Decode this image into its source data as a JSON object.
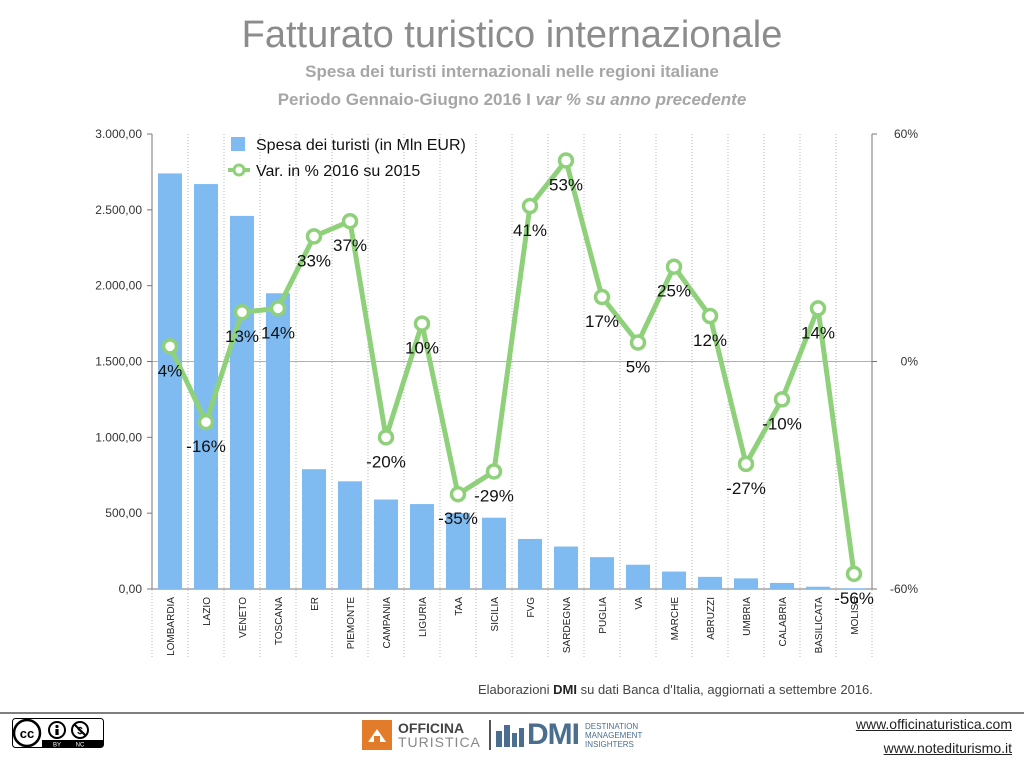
{
  "header": {
    "title": "Fatturato turistico internazionale",
    "subtitle": "Spesa dei turisti internazionali nelle regioni italiane",
    "period_main": "Periodo Gennaio-Giugno 2016 I ",
    "period_italic": "var % su anno precedente"
  },
  "chart_data": {
    "type": "bar",
    "categories": [
      "LOMBARDIA",
      "LAZIO",
      "VENETO",
      "TOSCANA",
      "ER",
      "PIEMONTE",
      "CAMPANIA",
      "LIGURIA",
      "TAA",
      "SICILIA",
      "FVG",
      "SARDEGNA",
      "PUGLIA",
      "VA",
      "MARCHE",
      "ABRUZZI",
      "UMBRIA",
      "CALABRIA",
      "BASILICATA",
      "MOLISE"
    ],
    "series": [
      {
        "name": "Spesa dei turisti (in Mln EUR)",
        "type": "bar",
        "axis": "left",
        "color": "#7fbbf0",
        "values": [
          2740,
          2670,
          2460,
          1950,
          790,
          710,
          590,
          560,
          500,
          470,
          330,
          280,
          210,
          160,
          115,
          80,
          70,
          40,
          15,
          5
        ]
      },
      {
        "name": "Var. in %   2016 su 2015",
        "type": "line",
        "axis": "right",
        "color": "#8fd17a",
        "values": [
          4,
          -16,
          13,
          14,
          33,
          37,
          -20,
          10,
          -35,
          -29,
          41,
          53,
          17,
          5,
          25,
          12,
          -27,
          -10,
          14,
          -56
        ],
        "labels": [
          "4%",
          "-16%",
          "13%",
          "14%",
          "33%",
          "37%",
          "-20%",
          "10%",
          "-35%",
          "-29%",
          "41%",
          "53%",
          "17%",
          "5%",
          "25%",
          "12%",
          "-27%",
          "-10%",
          "14%",
          "-56%"
        ]
      }
    ],
    "y_left": {
      "min": 0,
      "max": 3000,
      "ticks": [
        "0,00",
        "500,00",
        "1.000,00",
        "1.500,00",
        "2.000,00",
        "2.500,00",
        "3.000,00"
      ]
    },
    "y_right": {
      "min": -60,
      "max": 60,
      "ticks": [
        "-60%",
        "0%",
        "60%"
      ]
    },
    "legend_position": "top-left"
  },
  "footer": {
    "source_prefix": "Elaborazioni ",
    "source_bold": "DMI",
    "source_suffix": " su dati Banca d'Italia,  aggiornati a settembre 2016.",
    "logo1_line1": "OFFICINA",
    "logo1_line2": "TURISTICA",
    "logo2_mark": "DMI",
    "logo2_line1": "DESTINATION",
    "logo2_line2": "MANAGEMENT",
    "logo2_line3": "INSIGHTERS",
    "cc_text1": "BY",
    "cc_text2": "NC",
    "link1": "www.officinaturistica.com",
    "link2": "www.notediturismo.it"
  }
}
